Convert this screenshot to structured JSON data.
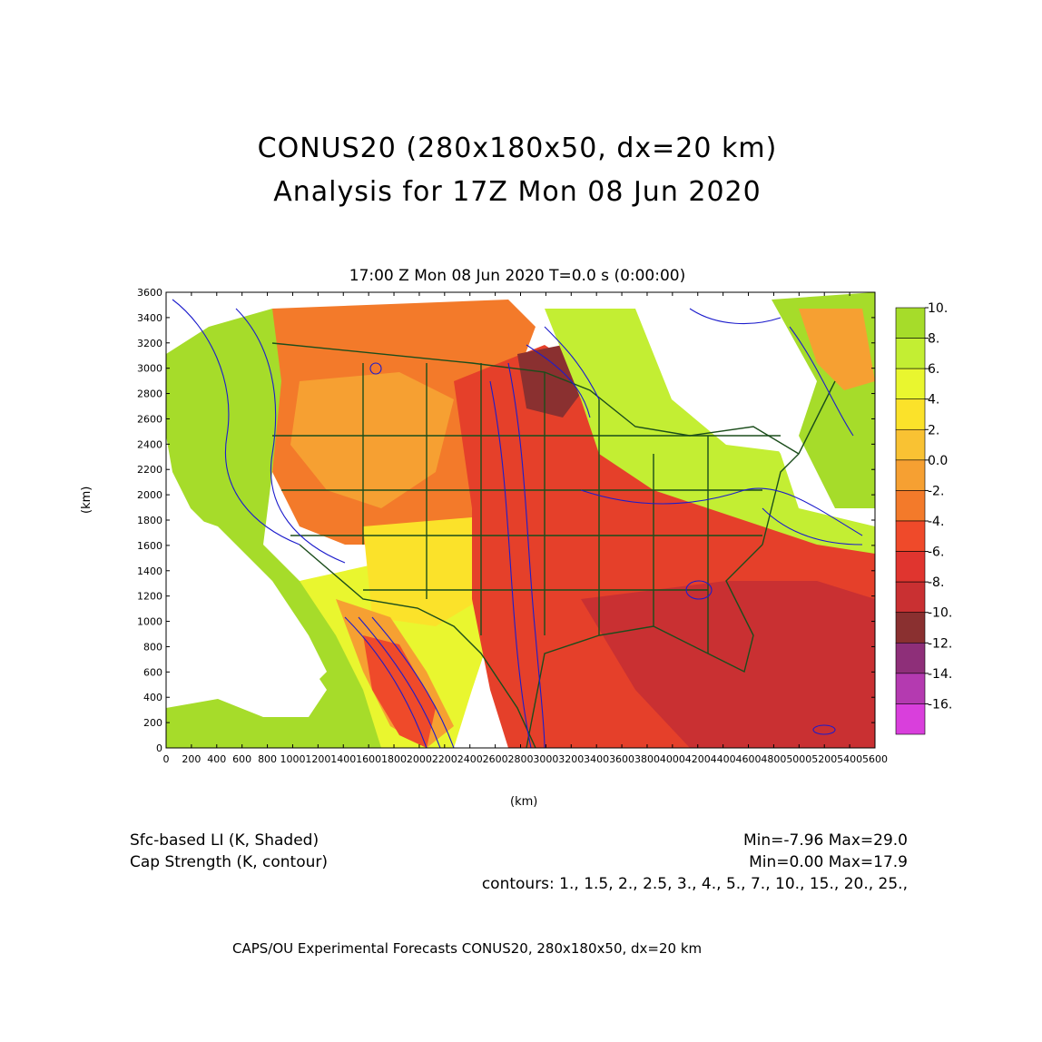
{
  "title": {
    "line1": "CONUS20 (280x180x50, dx=20 km)",
    "line2": "Analysis for 17Z Mon 08 Jun 2020"
  },
  "plot": {
    "subtitle": "17:00 Z Mon 08 Jun 2020    T=0.0 s (0:00:00)",
    "x_axis_label": "(km)",
    "y_axis_label": "(km)",
    "x_ticks": [
      "0",
      "200",
      "400",
      "600",
      "800",
      "1000",
      "1200",
      "1400",
      "1600",
      "1800",
      "2000",
      "2200",
      "2400",
      "2600",
      "2800",
      "3000",
      "3200",
      "3400",
      "3600",
      "3800",
      "4000",
      "4200",
      "4400",
      "4600",
      "4800",
      "5000",
      "5200",
      "5400",
      "5600"
    ],
    "y_ticks": [
      "0",
      "200",
      "400",
      "600",
      "800",
      "1000",
      "1200",
      "1400",
      "1600",
      "1800",
      "2000",
      "2200",
      "2400",
      "2600",
      "2800",
      "3000",
      "3200",
      "3400",
      "3600"
    ],
    "x_range_km": [
      0,
      5600
    ],
    "y_range_km": [
      0,
      3600
    ]
  },
  "colorbar": {
    "labels": [
      "10.",
      "8.",
      "6.",
      "4.",
      "2.",
      "0.0",
      "-2.",
      "-4.",
      "-6.",
      "-8.",
      "-10.",
      "-12.",
      "-14.",
      "-16."
    ],
    "colors": [
      "#a6dc2a",
      "#c3ee33",
      "#e9f62f",
      "#fbe22a",
      "#f9c233",
      "#f6a032",
      "#f37a2a",
      "#ef4a2a",
      "#e0352f",
      "#c93032",
      "#8a3030",
      "#8e2f79",
      "#b43ab0",
      "#d93fdc"
    ]
  },
  "map_colors": {
    "land_default": "#e5402a",
    "outline": "#1b4d1b",
    "contour": "#1c1ccc",
    "white": "#ffffff"
  },
  "footer": {
    "field1_name": "Sfc-based LI (K, Shaded)",
    "field1_range": "Min=-7.96 Max=29.0",
    "field2_name": "Cap Strength (K, contour)",
    "field2_range": "Min=0.00 Max=17.9",
    "contours": "contours: 1., 1.5, 2., 2.5, 3., 4., 5., 7., 10., 15., 20., 25.,",
    "credit": "CAPS/OU Experimental Forecasts   CONUS20, 280x180x50, dx=20 km"
  }
}
